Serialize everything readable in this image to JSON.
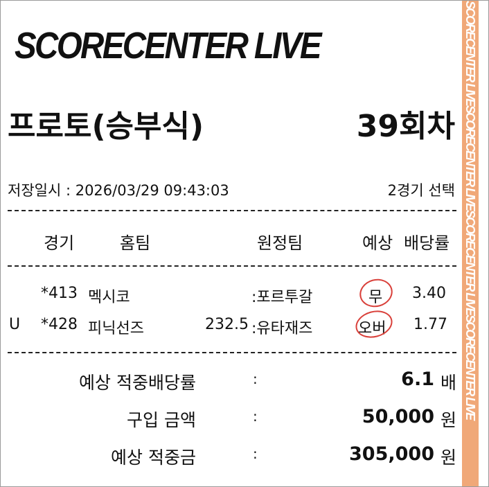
{
  "logo": "SCORECENTER LIVE",
  "title": "프로토(승부식)",
  "round": "39회차",
  "saved": "저장일시 : 2026/03/29 09:43:03",
  "selected": "2경기 선택",
  "headers": {
    "game": "경기",
    "home": "홈팀",
    "away": "원정팀",
    "pick": "예상",
    "odds": "배당률"
  },
  "rows": [
    {
      "flag": "",
      "game": "*413",
      "home": "멕시코",
      "line": "",
      "away": ":포르투갈",
      "pick": "무",
      "odds": "3.40"
    },
    {
      "flag": "U",
      "game": "*428",
      "home": "피닉선즈",
      "line": "232.5",
      "away": ":유타재즈",
      "pick": "오버",
      "odds": "1.77"
    }
  ],
  "summary": [
    {
      "label": "예상 적중배당률",
      "colon": ":",
      "value": "6.1",
      "unit": "배"
    },
    {
      "label": "구입 금액",
      "colon": ":",
      "value": "50,000",
      "unit": "원"
    },
    {
      "label": "예상 적중금",
      "colon": ":",
      "value": "305,000",
      "unit": "원"
    }
  ],
  "strip_text": "SCORECENTER LIVESCORECENTER LIVESCORECENTER LIVESCORECENTER LIVE",
  "colors": {
    "strip": "#f0a878",
    "circle": "#d9403a"
  }
}
